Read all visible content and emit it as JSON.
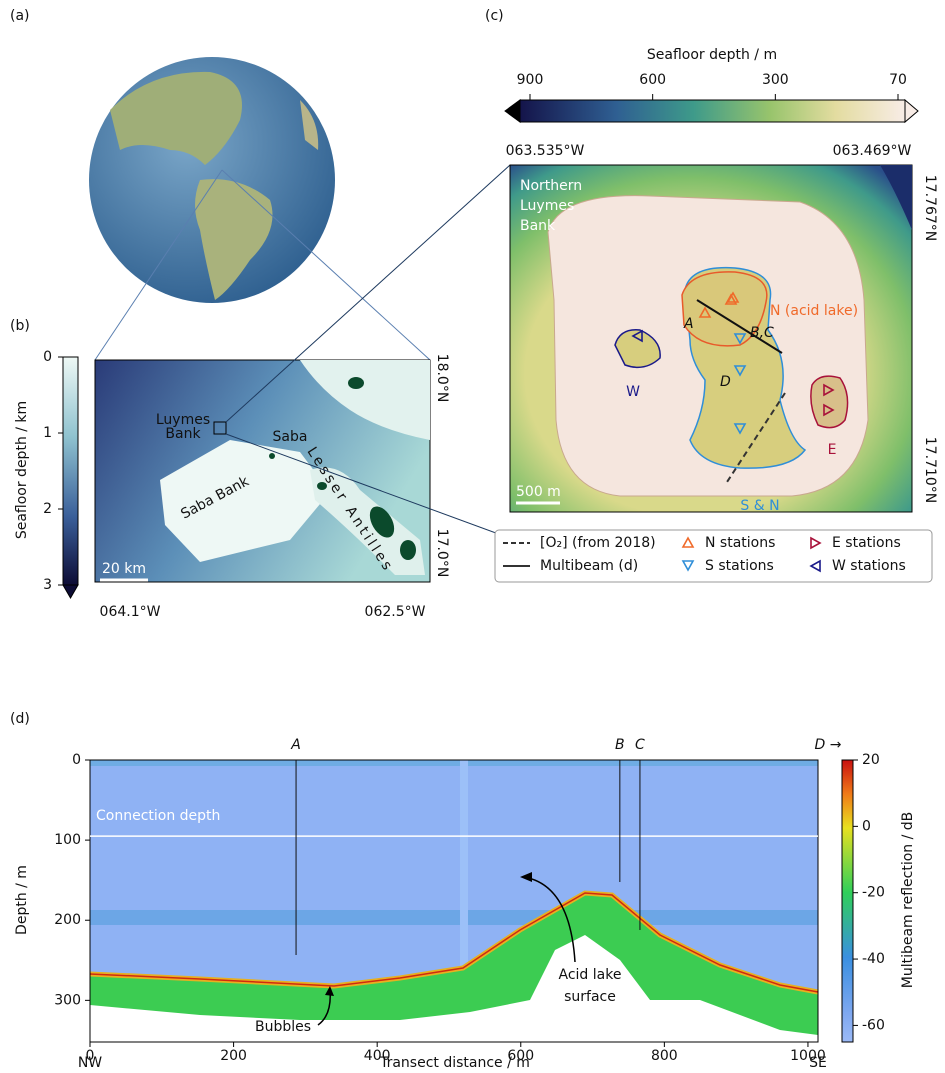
{
  "panels": {
    "a": {
      "label": "(a)"
    },
    "b": {
      "label": "(b)",
      "colorbar": {
        "title": "Seafloor depth / km",
        "lim": [
          0,
          3
        ],
        "ticks": [
          0,
          1,
          2,
          3
        ]
      },
      "lon_labels": [
        "064.1°W",
        "062.5°W"
      ],
      "lat_labels": [
        "18.0°N",
        "17.0°N"
      ],
      "places": {
        "luymes": [
          "Luymes",
          "Bank"
        ],
        "saba": "Saba",
        "saba_bank": "Saba Bank",
        "lesser_antilles": "Lesser Antilles"
      },
      "scale_bar": "20 km"
    },
    "c": {
      "label": "(c)",
      "colorbar": {
        "title": "Seafloor depth / m",
        "ticks": [
          900,
          600,
          300,
          70
        ]
      },
      "lon_labels": [
        "063.535°W",
        "063.469°W"
      ],
      "lat_labels": [
        "17.767°N",
        "17.710°N"
      ],
      "title_lines": [
        "Northern",
        "Luymes",
        "Bank"
      ],
      "regions": {
        "n": "N (acid lake)",
        "w": "W",
        "e": "E",
        "s": "S & N"
      },
      "points": [
        "A",
        "B,C",
        "D"
      ],
      "scale_bar": "500 m",
      "legend": [
        "[O₂] (from 2018)",
        "Multibeam (d)",
        "N stations",
        "S stations",
        "E stations",
        "W stations"
      ]
    },
    "d": {
      "label": "(d)",
      "xlabel": "Transect distance / m",
      "ylabel": "Depth / m",
      "xlim": [
        0,
        1014
      ],
      "xticks": [
        0,
        200,
        400,
        600,
        800,
        1000
      ],
      "ylim": [
        0,
        352
      ],
      "yticks": [
        0,
        100,
        200,
        300
      ],
      "left_label": "NW",
      "right_label": "SE",
      "colorbar": {
        "title": "Multibeam reflection / dB",
        "lim": [
          -65,
          20
        ],
        "ticks": [
          20,
          0,
          -20,
          -40,
          -60
        ]
      },
      "markers": [
        {
          "label": "A",
          "x": 287
        },
        {
          "label": "B",
          "x": 738
        },
        {
          "label": "C",
          "x": 766
        }
      ],
      "end_label": "D →",
      "connection": {
        "label": "Connection depth",
        "depth": 95
      },
      "annotations": {
        "bubbles": "Bubbles",
        "acid": [
          "Acid lake",
          "surface"
        ]
      }
    }
  }
}
